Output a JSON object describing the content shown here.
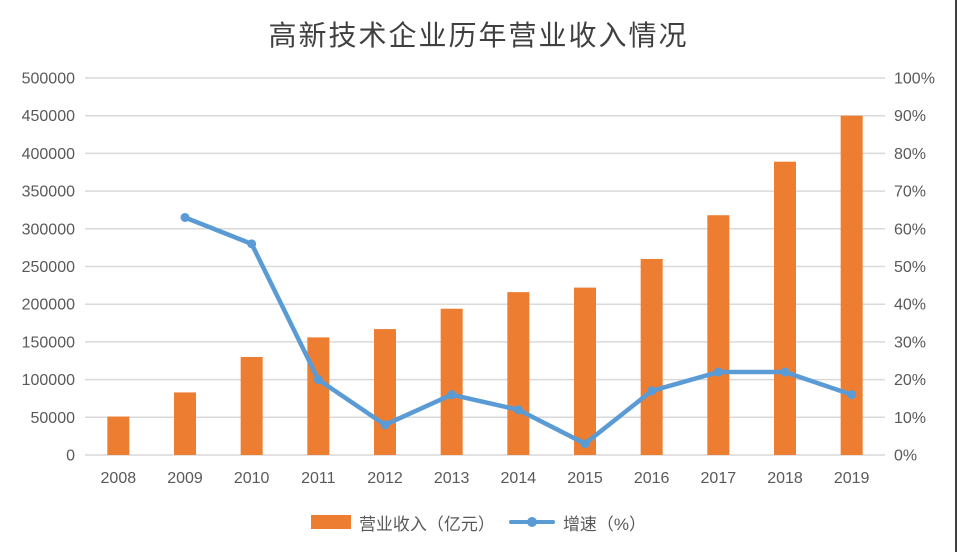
{
  "title": "高新技术企业历年营业收入情况",
  "colors": {
    "bar": "#ED7D31",
    "line": "#5B9BD5",
    "grid": "#D9D9D9",
    "axis_text": "#595959",
    "title_text": "#404040",
    "background": "#FFFFFF"
  },
  "chart_data": {
    "type": "bar+line combo",
    "title": "高新技术企业历年营业收入情况",
    "categories": [
      "2008",
      "2009",
      "2010",
      "2011",
      "2012",
      "2013",
      "2014",
      "2015",
      "2016",
      "2017",
      "2018",
      "2019"
    ],
    "series": [
      {
        "name": "营业收入（亿元）",
        "type": "bar",
        "axis": "left",
        "color": "#ED7D31",
        "values": [
          51000,
          83000,
          130000,
          156000,
          167000,
          194000,
          216000,
          222000,
          260000,
          318000,
          389000,
          450000
        ]
      },
      {
        "name": "增速（%）",
        "type": "line",
        "axis": "right",
        "color": "#5B9BD5",
        "values": [
          null,
          63,
          56,
          20,
          8,
          16,
          12,
          3,
          17,
          22,
          22,
          16
        ]
      }
    ],
    "left_axis": {
      "min": 0,
      "max": 500000,
      "step": 50000,
      "tick_labels": [
        "0",
        "50000",
        "100000",
        "150000",
        "200000",
        "250000",
        "300000",
        "350000",
        "400000",
        "450000",
        "500000"
      ]
    },
    "right_axis": {
      "min": 0,
      "max": 100,
      "step": 10,
      "tick_labels": [
        "0%",
        "10%",
        "20%",
        "30%",
        "40%",
        "50%",
        "60%",
        "70%",
        "80%",
        "90%",
        "100%"
      ]
    },
    "grid": true,
    "legend_position": "bottom"
  }
}
